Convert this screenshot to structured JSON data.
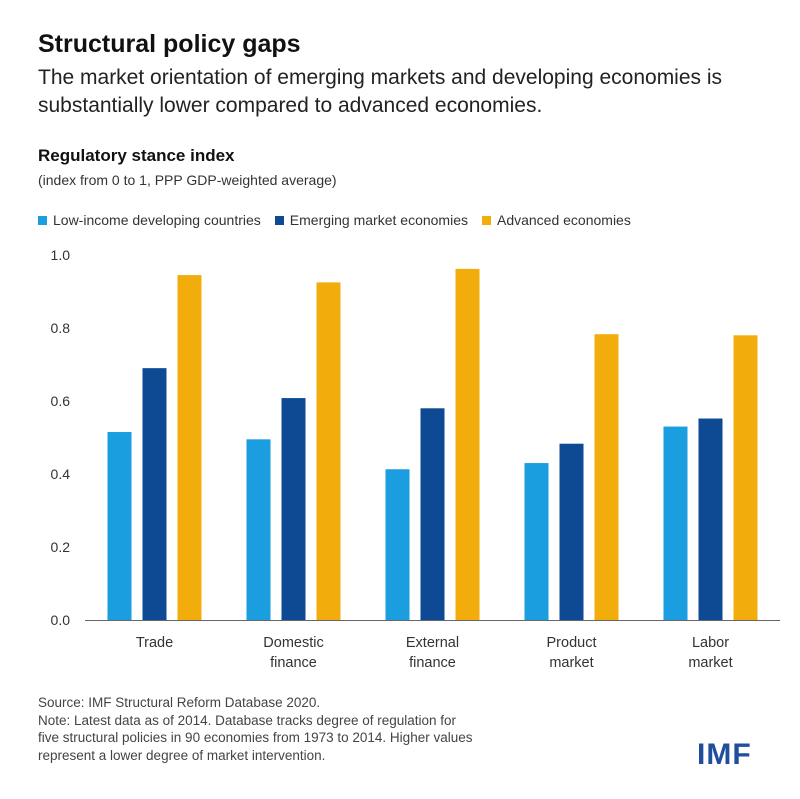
{
  "header": {
    "title": "Structural policy gaps",
    "subtitle": "The market orientation of emerging markets and developing economies is substantially lower compared to advanced economies."
  },
  "chart_data": {
    "type": "bar",
    "title": "Regulatory stance index",
    "subtitle": "(index from 0 to 1, PPP GDP-weighted average)",
    "categories": [
      [
        "Trade"
      ],
      [
        "Domestic",
        "finance"
      ],
      [
        "External",
        "finance"
      ],
      [
        "Product",
        "market"
      ],
      [
        "Labor",
        "market"
      ]
    ],
    "series": [
      {
        "name": "Low-income developing countries",
        "color": "#1a9ee0",
        "values": [
          0.515,
          0.495,
          0.413,
          0.43,
          0.53
        ]
      },
      {
        "name": "Emerging market economies",
        "color": "#0e4a94",
        "values": [
          0.69,
          0.608,
          0.58,
          0.483,
          0.552
        ]
      },
      {
        "name": "Advanced economies",
        "color": "#f2ac0c",
        "values": [
          0.945,
          0.925,
          0.962,
          0.783,
          0.78
        ]
      }
    ],
    "yticks": [
      "0.0",
      "0.2",
      "0.4",
      "0.6",
      "0.8",
      "1.0"
    ],
    "ylim": [
      0,
      1
    ],
    "grid": false,
    "legend_position": "top"
  },
  "footer": {
    "source": "Source: IMF Structural Reform Database 2020.",
    "note_lines": [
      "Note: Latest data as of 2014. Database tracks degree of regulation for",
      "five structural policies in 90 economies from 1973 to 2014. Higher values",
      "represent a lower degree of market intervention."
    ],
    "logo": "IMF"
  }
}
